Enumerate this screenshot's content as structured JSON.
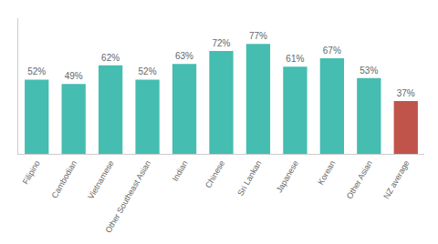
{
  "chart_data": {
    "type": "bar",
    "categories": [
      "Filipino",
      "Cambodian",
      "Vietnamese",
      "Other Southeast Asian",
      "Indian",
      "Chinese",
      "Sri Lankan",
      "Japanese",
      "Korean",
      "Other Asian",
      "NZ average"
    ],
    "values": [
      52,
      49,
      62,
      52,
      63,
      72,
      77,
      61,
      67,
      53,
      37
    ],
    "value_labels": [
      "52%",
      "49%",
      "62%",
      "52%",
      "63%",
      "72%",
      "77%",
      "61%",
      "67%",
      "53%",
      "37%"
    ],
    "colors": [
      "#45BDB0",
      "#45BDB0",
      "#45BDB0",
      "#45BDB0",
      "#45BDB0",
      "#45BDB0",
      "#45BDB0",
      "#45BDB0",
      "#45BDB0",
      "#45BDB0",
      "#C0544A"
    ],
    "ylim": [
      0,
      95
    ],
    "data_labels": true,
    "tick_labels": "x",
    "grid": false
  }
}
